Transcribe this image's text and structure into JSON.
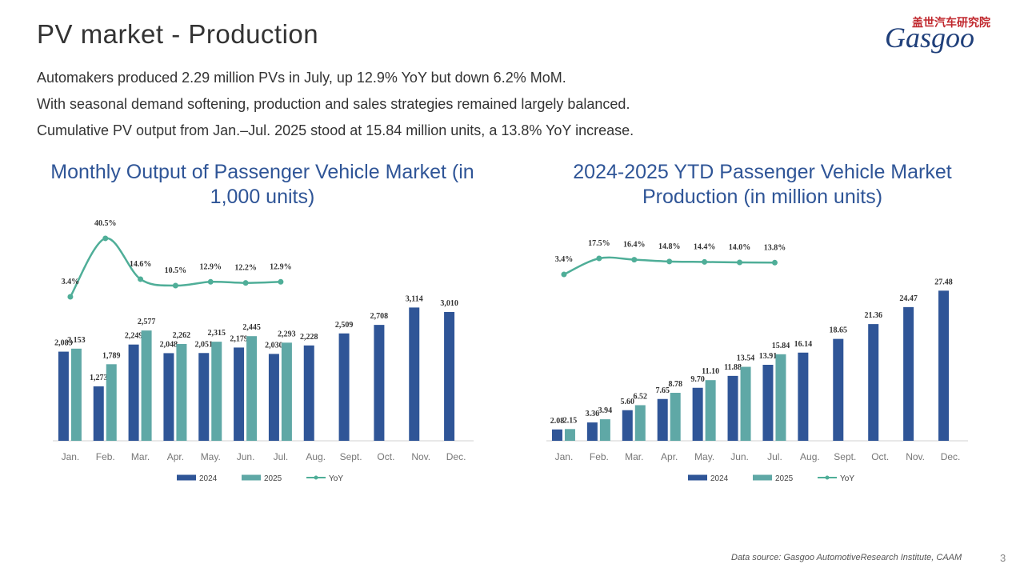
{
  "header": {
    "title": "PV market - Production",
    "bullets": [
      "Automakers produced 2.29 million PVs in July, up 12.9% YoY but down 6.2% MoM.",
      "With seasonal demand softening, production and sales strategies remained largely balanced.",
      "Cumulative PV output from Jan.–Jul. 2025 stood at 15.84 million units, a 13.8% YoY increase."
    ],
    "logo": {
      "cn": "盖世汽车研究院",
      "en": "Gasgoo"
    }
  },
  "footer": {
    "source": "Data source: Gasgoo AutomotiveResearch Institute, CAAM",
    "page": "3"
  },
  "chart_data": [
    {
      "type": "bar",
      "title": "Monthly Output of Passenger Vehicle Market (in 1,000 units)",
      "categories": [
        "Jan.",
        "Feb.",
        "Mar.",
        "Apr.",
        "May.",
        "Jun.",
        "Jul.",
        "Aug.",
        "Sept.",
        "Oct.",
        "Nov.",
        "Dec."
      ],
      "series": [
        {
          "name": "2024",
          "color": "#2f5597",
          "values": [
            2083,
            1273,
            2249,
            2048,
            2051,
            2179,
            2030,
            2228,
            2509,
            2708,
            3114,
            3010
          ],
          "value_labels": [
            "2,083",
            "1,273",
            "2,249",
            "2,048",
            "2,051",
            "2,179",
            "2,030",
            "2,228",
            "2,509",
            "2,708",
            "3,114",
            "3,010"
          ]
        },
        {
          "name": "2025",
          "color": "#5fa8a6",
          "values": [
            2153,
            1789,
            2577,
            2262,
            2315,
            2445,
            2293,
            null,
            null,
            null,
            null,
            null
          ],
          "value_labels": [
            "2,153",
            "1,789",
            "2,577",
            "2,262",
            "2,315",
            "2,445",
            "2,293",
            null,
            null,
            null,
            null,
            null
          ]
        },
        {
          "name": "YoY",
          "type": "line",
          "axis": "y2",
          "color": "#4fae98",
          "values": [
            3.4,
            40.5,
            14.6,
            10.5,
            12.9,
            12.2,
            12.9,
            null,
            null,
            null,
            null,
            null
          ],
          "value_labels": [
            "3.4%",
            "40.5%",
            "14.6%",
            "10.5%",
            "12.9%",
            "12.2%",
            "12.9%",
            null,
            null,
            null,
            null,
            null
          ]
        }
      ],
      "ylim": [
        0,
        6000
      ],
      "y2lim": [
        -88,
        75
      ],
      "legend": "bottom"
    },
    {
      "type": "bar",
      "title": "2024-2025 YTD Passenger Vehicle Market Production (in million units)",
      "categories": [
        "Jan.",
        "Feb.",
        "Mar.",
        "Apr.",
        "May.",
        "Jun.",
        "Jul.",
        "Aug.",
        "Sept.",
        "Oct.",
        "Nov.",
        "Dec."
      ],
      "series": [
        {
          "name": "2024",
          "color": "#2f5597",
          "values": [
            2.08,
            3.36,
            5.6,
            7.65,
            9.7,
            11.88,
            13.91,
            16.14,
            18.65,
            21.36,
            24.47,
            27.48
          ],
          "value_labels": [
            "2.08",
            "3.36",
            "5.60",
            "7.65",
            "9.70",
            "11.88",
            "13.91",
            "16.14",
            "18.65",
            "21.36",
            "24.47",
            "27.48"
          ]
        },
        {
          "name": "2025",
          "color": "#5fa8a6",
          "values": [
            2.15,
            3.94,
            6.52,
            8.78,
            11.1,
            13.54,
            15.84,
            null,
            null,
            null,
            null,
            null
          ],
          "value_labels": [
            "2.15",
            "3.94",
            "6.52",
            "8.78",
            "11.10",
            "13.54",
            "15.84",
            null,
            null,
            null,
            null,
            null
          ]
        },
        {
          "name": "YoY",
          "type": "line",
          "axis": "y2",
          "color": "#4fae98",
          "values": [
            3.4,
            17.5,
            16.4,
            14.8,
            14.4,
            14.0,
            13.8,
            null,
            null,
            null,
            null,
            null
          ],
          "value_labels": [
            "3.4%",
            "17.5%",
            "16.4%",
            "14.8%",
            "14.4%",
            "14.0%",
            "13.8%",
            null,
            null,
            null,
            null,
            null
          ]
        }
      ],
      "ylim": [
        0,
        47
      ],
      "y2lim": [
        -143,
        83
      ],
      "legend": "bottom"
    }
  ]
}
